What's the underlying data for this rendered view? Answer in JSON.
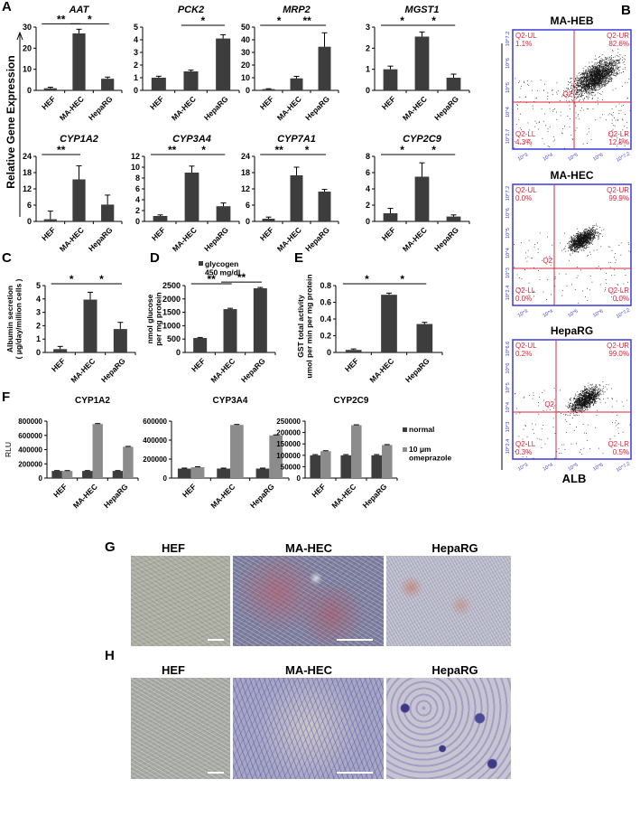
{
  "panel_letters": {
    "A": "A",
    "B": "B",
    "C": "C",
    "D": "D",
    "E": "E",
    "F": "F",
    "G": "G",
    "H": "H"
  },
  "colors": {
    "bar": "#3d3d3d",
    "omeprazole": "#8c8c8c",
    "flow_axis": "#3a3ad8",
    "flow_gate": "#d8283a",
    "text": "#000000"
  },
  "panel_a_ylabel": "Relative  Gene  Expression",
  "chart_data": [
    {
      "id": "AAT",
      "type": "bar",
      "title": "AAT",
      "categories": [
        "HEF",
        "MA-HEC",
        "HepaRG"
      ],
      "values": [
        1,
        27,
        5.5
      ],
      "errors": [
        0.5,
        2,
        0.8
      ],
      "ylim": [
        0,
        30
      ],
      "yticks": [
        "0",
        "10",
        "20",
        "30"
      ],
      "significance": [
        {
          "from": 0,
          "to": 1,
          "label": "**"
        },
        {
          "from": 1,
          "to": 2,
          "label": "*"
        }
      ]
    },
    {
      "id": "PCK2",
      "type": "bar",
      "title": "PCK2",
      "categories": [
        "HEF",
        "MA-HEC",
        "HepaRG"
      ],
      "values": [
        1,
        1.5,
        4.1
      ],
      "errors": [
        0.12,
        0.1,
        0.3
      ],
      "ylim": [
        0,
        5
      ],
      "yticks": [
        "0",
        "1",
        "2",
        "3",
        "4",
        "5"
      ],
      "significance": [
        {
          "from": 1,
          "to": 2,
          "label": "*"
        }
      ]
    },
    {
      "id": "MRP2",
      "type": "bar",
      "title": "MRP2",
      "categories": [
        "HEF",
        "MA-HEC",
        "HepaRG"
      ],
      "values": [
        1,
        9.5,
        34.5
      ],
      "errors": [
        0.3,
        1.6,
        11
      ],
      "ylim": [
        0,
        50
      ],
      "yticks": [
        "0",
        "10",
        "20",
        "30",
        "40",
        "50"
      ],
      "significance": [
        {
          "from": 0,
          "to": 1,
          "label": "*"
        },
        {
          "from": 1,
          "to": 2,
          "label": "**"
        }
      ]
    },
    {
      "id": "MGST1",
      "type": "bar",
      "title": "MGST1",
      "categories": [
        "HEF",
        "MA-HEC",
        "HepaRG"
      ],
      "values": [
        1,
        2.55,
        0.6
      ],
      "errors": [
        0.15,
        0.22,
        0.17
      ],
      "ylim": [
        0,
        3
      ],
      "yticks": [
        "0",
        "1",
        "2",
        "3"
      ],
      "significance": [
        {
          "from": 0,
          "to": 1,
          "label": "*"
        },
        {
          "from": 1,
          "to": 2,
          "label": "*"
        }
      ]
    },
    {
      "id": "CYP1A2",
      "type": "bar",
      "title": "CYP1A2",
      "categories": [
        "HEF",
        "MA-HEC",
        "HepaRG"
      ],
      "values": [
        0.8,
        15.5,
        6.2
      ],
      "errors": [
        3,
        5,
        3.5
      ],
      "ylim": [
        0,
        24
      ],
      "yticks": [
        "0",
        "6",
        "12",
        "18",
        "24"
      ],
      "significance": [
        {
          "from": 0,
          "to": 1,
          "label": "**"
        }
      ]
    },
    {
      "id": "CYP3A4",
      "type": "bar",
      "title": "CYP3A4",
      "categories": [
        "HEF",
        "MA-HEC",
        "HepaRG"
      ],
      "values": [
        1,
        9,
        2.8
      ],
      "errors": [
        0.2,
        1.2,
        0.6
      ],
      "ylim": [
        0,
        12
      ],
      "yticks": [
        "0",
        "2",
        "4",
        "6",
        "8",
        "10",
        "12"
      ],
      "significance": [
        {
          "from": 0,
          "to": 1,
          "label": "**"
        },
        {
          "from": 1,
          "to": 2,
          "label": "*"
        }
      ]
    },
    {
      "id": "CYP7A1",
      "type": "bar",
      "title": "CYP7A1",
      "categories": [
        "HEF",
        "MA-HEC",
        "HepaRG"
      ],
      "values": [
        1,
        17,
        11
      ],
      "errors": [
        0.6,
        3,
        0.8
      ],
      "ylim": [
        0,
        24
      ],
      "yticks": [
        "0",
        "6",
        "12",
        "18",
        "24"
      ],
      "significance": [
        {
          "from": 0,
          "to": 1,
          "label": "**"
        },
        {
          "from": 1,
          "to": 2,
          "label": "*"
        }
      ]
    },
    {
      "id": "CYP2C9",
      "type": "bar",
      "title": "CYP2C9",
      "categories": [
        "HEF",
        "MA-HEC",
        "HepaRG"
      ],
      "values": [
        1,
        5.5,
        0.6
      ],
      "errors": [
        0.6,
        1.7,
        0.2
      ],
      "ylim": [
        0,
        8
      ],
      "yticks": [
        "0",
        "2",
        "4",
        "6",
        "8"
      ],
      "significance": [
        {
          "from": 0,
          "to": 1,
          "label": "*"
        },
        {
          "from": 1,
          "to": 2,
          "label": "*"
        }
      ]
    },
    {
      "id": "C",
      "type": "bar",
      "title": "",
      "ylabel": "Albumin secretion\n( μg/day/million cells )",
      "categories": [
        "HEF",
        "MA-HEC",
        "HepaRG"
      ],
      "values": [
        0.25,
        3.95,
        1.75
      ],
      "errors": [
        0.2,
        0.55,
        0.5
      ],
      "ylim": [
        0,
        5
      ],
      "yticks": [
        "0",
        "1",
        "2",
        "3",
        "4",
        "5"
      ],
      "significance": [
        {
          "from": 0,
          "to": 1,
          "label": "*"
        },
        {
          "from": 1,
          "to": 2,
          "label": "*"
        }
      ]
    },
    {
      "id": "D",
      "type": "bar",
      "title": "",
      "ylabel": "nmol glucose\nper mg protein",
      "legend": "glycogen\n450 mg/dl",
      "categories": [
        "HEF",
        "MA-HEC",
        "HepaRG"
      ],
      "values": [
        540,
        1620,
        2400
      ],
      "errors": [
        20,
        30,
        30
      ],
      "ylim": [
        0,
        2500
      ],
      "yticks": [
        "0",
        "500",
        "1000",
        "1500",
        "2000",
        "2500"
      ],
      "significance": [
        {
          "from": 0,
          "to": 1,
          "label": "**"
        },
        {
          "from": 1,
          "to": 2,
          "label": "**"
        }
      ]
    },
    {
      "id": "E",
      "type": "bar",
      "title": "",
      "ylabel": "GST total activity\numol per min per mg protein",
      "categories": [
        "HEF",
        "MA-HEC",
        "HepaRG"
      ],
      "values": [
        0.03,
        0.69,
        0.34
      ],
      "errors": [
        0.012,
        0.02,
        0.02
      ],
      "ylim": [
        0,
        0.8
      ],
      "yticks": [
        "0",
        "0.2",
        "0.4",
        "0.6",
        "0.8"
      ],
      "significance": [
        {
          "from": 0,
          "to": 1,
          "label": "*"
        },
        {
          "from": 1,
          "to": 2,
          "label": "*"
        }
      ]
    },
    {
      "id": "F1",
      "type": "bar",
      "title": "CYP1A2",
      "ylabel": "RLU",
      "categories": [
        "HEF",
        "MA-HEC",
        "HepaRG"
      ],
      "series": [
        {
          "name": "normal",
          "values": [
            100000,
            100000,
            100000
          ],
          "errors": [
            5000,
            5000,
            5000
          ]
        },
        {
          "name": "10 μm\nomeprazole",
          "values": [
            100000,
            760000,
            440000
          ],
          "errors": [
            5000,
            6000,
            5000
          ]
        }
      ],
      "ylim": [
        0,
        800000
      ],
      "yticks": [
        "0",
        "200000",
        "400000",
        "600000",
        "800000"
      ]
    },
    {
      "id": "F2",
      "type": "bar",
      "title": "CYP3A4",
      "categories": [
        "HEF",
        "MA-HEC",
        "HepaRG"
      ],
      "series": [
        {
          "name": "normal",
          "values": [
            100000,
            100000,
            100000
          ],
          "errors": [
            5000,
            5000,
            5000
          ]
        },
        {
          "name": "10 μm\nomeprazole",
          "values": [
            115000,
            560000,
            450000
          ],
          "errors": [
            4000,
            5000,
            5000
          ]
        }
      ],
      "ylim": [
        0,
        600000
      ],
      "yticks": [
        "0",
        "200000",
        "400000",
        "600000"
      ]
    },
    {
      "id": "F3",
      "type": "bar",
      "title": "CYP2C9",
      "categories": [
        "HEF",
        "MA-HEC",
        "HepaRG"
      ],
      "series": [
        {
          "name": "normal",
          "values": [
            100000,
            100000,
            100000
          ],
          "errors": [
            3000,
            3000,
            3000
          ]
        },
        {
          "name": "10 μm\nomeprazole",
          "values": [
            118000,
            232000,
            145000
          ],
          "errors": [
            2000,
            2000,
            2000
          ]
        }
      ],
      "ylim": [
        0,
        250000
      ],
      "yticks": [
        "0",
        "50000",
        "100000",
        "150000",
        "200000",
        "250000"
      ],
      "legend": [
        "normal",
        "10 μm\nomeprazole"
      ]
    }
  ],
  "flow": {
    "ylabel": "AAT",
    "xlabel": "ALB",
    "gate": "Q2",
    "xticks": [
      "10^3",
      "10^4",
      "10^5",
      "10^6",
      "10^7.2"
    ],
    "plots": [
      {
        "title": "MA-HEB",
        "yticks": [
          "10^2.7",
          "10^4",
          "10^5",
          "10^6",
          "10^7.2"
        ],
        "UL": [
          "Q2-UL",
          "1.1%"
        ],
        "UR": [
          "Q2-UR",
          "82.6%"
        ],
        "LL": [
          "Q2-LL",
          "4.3%"
        ],
        "LR": [
          "Q2-LR",
          "12.0%"
        ]
      },
      {
        "title": "MA-HEC",
        "yticks": [
          "10^2.4",
          "10^3",
          "10^4",
          "10^5",
          "10^6",
          "10^7.2"
        ],
        "UL": [
          "Q2-UL",
          "0.0%"
        ],
        "UR": [
          "Q2-UR",
          "99.9%"
        ],
        "LL": [
          "Q2-LL",
          "0.0%"
        ],
        "LR": [
          "Q2-LR",
          "0.0%"
        ]
      },
      {
        "title": "HepaRG",
        "yticks": [
          "10^2.4",
          "10^3",
          "10^4",
          "10^5",
          "10^6",
          "10^6.6"
        ],
        "UL": [
          "Q2-UL",
          "0.2%"
        ],
        "UR": [
          "Q2-UR",
          "99.0%"
        ],
        "LL": [
          "Q2-LL",
          "0.3%"
        ],
        "LR": [
          "Q2-LR",
          "0.5%"
        ]
      }
    ]
  },
  "panel_g": {
    "labels": [
      "HEF",
      "MA-HEC",
      "HepaRG"
    ]
  },
  "panel_h": {
    "labels": [
      "HEF",
      "MA-HEC",
      "HepaRG"
    ]
  }
}
